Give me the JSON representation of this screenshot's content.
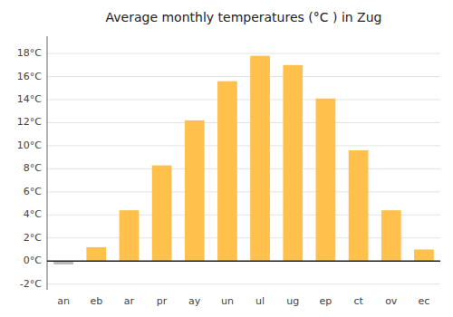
{
  "chart_data": {
    "type": "bar",
    "title": "Average monthly temperatures (°C ) in Zug",
    "categories": [
      "an",
      "eb",
      "ar",
      "pr",
      "ay",
      "un",
      "ul",
      "ug",
      "ep",
      "ct",
      "ov",
      "ec"
    ],
    "values": [
      -0.3,
      1.2,
      4.4,
      8.3,
      12.2,
      15.6,
      17.8,
      17.0,
      14.1,
      9.6,
      4.4,
      1.0
    ],
    "colors": [
      "#BBBBBB",
      "#FFC04C",
      "#FFC04C",
      "#FFC04C",
      "#FFC04C",
      "#FFC04C",
      "#FFC04C",
      "#FFC04C",
      "#FFC04C",
      "#FFC04C",
      "#FFC04C",
      "#FFC04C"
    ],
    "ylim": [
      -2.5,
      19.5
    ],
    "yticks": [
      {
        "value": -2,
        "label": "-2°C"
      },
      {
        "value": 0,
        "label": "0°C"
      },
      {
        "value": 2,
        "label": "2°C"
      },
      {
        "value": 4,
        "label": "4°C"
      },
      {
        "value": 6,
        "label": "6°C"
      },
      {
        "value": 8,
        "label": "8°C"
      },
      {
        "value": 10,
        "label": "10°C"
      },
      {
        "value": 12,
        "label": "12°C"
      },
      {
        "value": 14,
        "label": "14°C"
      },
      {
        "value": 16,
        "label": "16°C"
      },
      {
        "value": 18,
        "label": "18°C"
      }
    ],
    "grid": true
  }
}
